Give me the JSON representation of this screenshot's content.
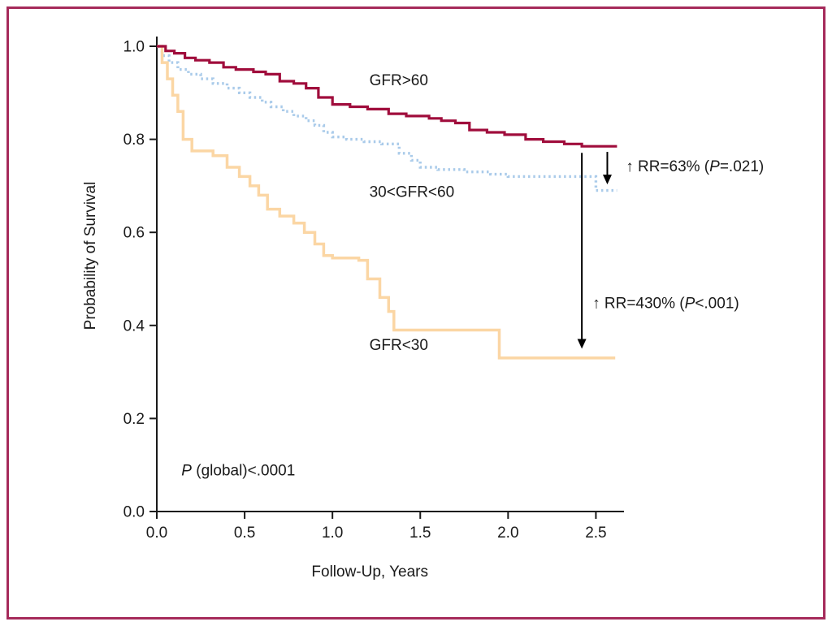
{
  "colors": {
    "frame": "#a52a5a",
    "axis": "#1a1a1a",
    "text": "#1a1a1a",
    "arrow": "#000000",
    "background": "#ffffff"
  },
  "chart_data": {
    "type": "line",
    "subtype": "kaplan-meier-step",
    "title": "",
    "xlabel": "Follow-Up, Years",
    "ylabel": "Probability of Survival",
    "xlim": [
      0,
      2.66
    ],
    "ylim": [
      0,
      1.0
    ],
    "grid": false,
    "legend": "inline-labels",
    "xtick_values": [
      0,
      0.5,
      1.0,
      1.5,
      2.0,
      2.5
    ],
    "xtick_labels": [
      "0.0",
      "0.5",
      "1.0",
      "1.5",
      "2.0",
      "2.5"
    ],
    "ytick_values": [
      0,
      0.2,
      0.4,
      0.6,
      0.8,
      1.0
    ],
    "ytick_labels": [
      "0.0",
      "0.2",
      "0.4",
      "0.6",
      "0.8",
      "1.0"
    ],
    "series": [
      {
        "id": "gfr-30-60",
        "name": "30<GFR<60",
        "color": "#aacbea",
        "dash": "2.5 3.8",
        "width": 3.4,
        "x": [
          0,
          0.03,
          0.07,
          0.12,
          0.18,
          0.25,
          0.32,
          0.4,
          0.47,
          0.53,
          0.6,
          0.65,
          0.72,
          0.78,
          0.85,
          0.9,
          0.95,
          1.0,
          1.08,
          1.18,
          1.28,
          1.38,
          1.45,
          1.5,
          1.6,
          1.75,
          1.9,
          2.0,
          2.5,
          2.62
        ],
        "y": [
          1.0,
          0.98,
          0.965,
          0.95,
          0.94,
          0.93,
          0.92,
          0.91,
          0.9,
          0.89,
          0.88,
          0.87,
          0.86,
          0.85,
          0.84,
          0.83,
          0.815,
          0.805,
          0.8,
          0.795,
          0.79,
          0.77,
          0.755,
          0.74,
          0.735,
          0.73,
          0.725,
          0.72,
          0.69,
          0.69
        ]
      },
      {
        "id": "gfr-lt-30",
        "name": "GFR<30",
        "color": "#fbd6a4",
        "dash": null,
        "width": 3.5,
        "x": [
          0,
          0.03,
          0.06,
          0.09,
          0.12,
          0.15,
          0.2,
          0.32,
          0.4,
          0.47,
          0.53,
          0.58,
          0.63,
          0.7,
          0.78,
          0.84,
          0.9,
          0.95,
          1.0,
          1.15,
          1.2,
          1.27,
          1.32,
          1.35,
          1.95,
          2.61
        ],
        "y": [
          1.0,
          0.965,
          0.93,
          0.895,
          0.86,
          0.8,
          0.775,
          0.765,
          0.74,
          0.72,
          0.7,
          0.68,
          0.65,
          0.635,
          0.62,
          0.6,
          0.575,
          0.55,
          0.545,
          0.54,
          0.5,
          0.46,
          0.43,
          0.39,
          0.33,
          0.33
        ]
      },
      {
        "id": "gfr-gt-60",
        "name": "GFR>60",
        "color": "#a00d3c",
        "dash": null,
        "width": 3.2,
        "x": [
          0,
          0.05,
          0.1,
          0.16,
          0.22,
          0.3,
          0.38,
          0.45,
          0.55,
          0.62,
          0.7,
          0.78,
          0.85,
          0.92,
          1.0,
          1.1,
          1.2,
          1.32,
          1.42,
          1.55,
          1.62,
          1.7,
          1.78,
          1.88,
          1.98,
          2.1,
          2.2,
          2.32,
          2.42,
          2.62
        ],
        "y": [
          1.0,
          0.99,
          0.985,
          0.975,
          0.97,
          0.965,
          0.955,
          0.95,
          0.945,
          0.94,
          0.925,
          0.92,
          0.91,
          0.89,
          0.875,
          0.87,
          0.865,
          0.855,
          0.85,
          0.845,
          0.84,
          0.835,
          0.82,
          0.815,
          0.81,
          0.8,
          0.795,
          0.79,
          0.785,
          0.785
        ]
      }
    ],
    "annotations": [
      {
        "name": "curve-label-gfr-gt-60",
        "x": 1.21,
        "y": 0.927,
        "size": 19,
        "segments": [
          {
            "text": "GFR>60",
            "italic": false
          }
        ]
      },
      {
        "name": "curve-label-gfr-30-60",
        "x": 1.21,
        "y": 0.687,
        "size": 19,
        "segments": [
          {
            "text": "30<GFR<60",
            "italic": false
          }
        ]
      },
      {
        "name": "curve-label-gfr-lt-30",
        "x": 1.21,
        "y": 0.358,
        "size": 19,
        "segments": [
          {
            "text": "GFR<30",
            "italic": false
          }
        ]
      },
      {
        "name": "p-global-annotation",
        "x": 0.14,
        "y": 0.088,
        "size": 19,
        "segments": [
          {
            "text": "P",
            "italic": true
          },
          {
            "text": " (global)<.0001",
            "italic": false
          }
        ]
      },
      {
        "name": "rr-63-annotation",
        "x": 2.67,
        "y": 0.742,
        "size": 19,
        "segments": [
          {
            "text": "↑ RR=63% (",
            "italic": false
          },
          {
            "text": "P",
            "italic": true
          },
          {
            "text": "=.021)",
            "italic": false
          }
        ]
      },
      {
        "name": "rr-430-annotation",
        "x": 2.48,
        "y": 0.448,
        "size": 19,
        "segments": [
          {
            "text": "↑ RR=430% (",
            "italic": false
          },
          {
            "text": "P",
            "italic": true
          },
          {
            "text": "<.001)",
            "italic": false
          }
        ]
      }
    ],
    "arrows": [
      {
        "name": "arrow-rr-63",
        "x": 2.565,
        "y1": 0.773,
        "y2": 0.703
      },
      {
        "name": "arrow-rr-430",
        "x": 2.42,
        "y1": 0.771,
        "y2": 0.35
      }
    ]
  }
}
